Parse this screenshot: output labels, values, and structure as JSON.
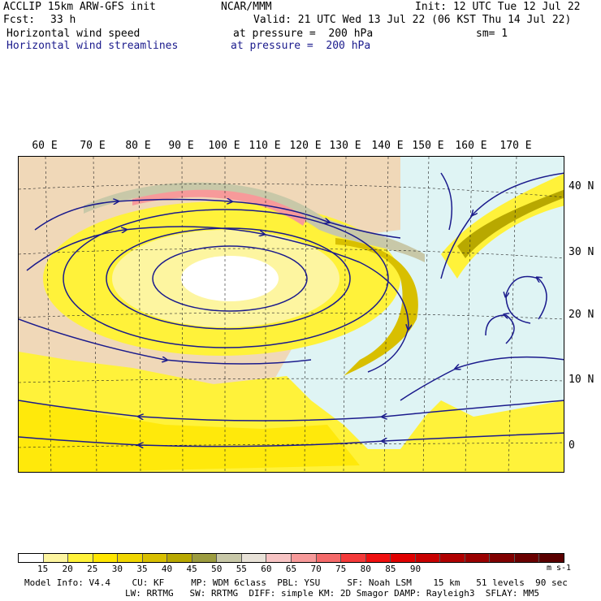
{
  "header": {
    "model_title": "ACCLIP 15km ARW-GFS init",
    "org": "NCAR/MMM",
    "init": "Init: 12 UTC Tue 12 Jul 22",
    "fcst_label": "Fcst:",
    "fcst_value": "33 h",
    "valid": "Valid: 21 UTC Wed 13 Jul 22 (06 KST Thu 14 Jul 22)",
    "field1_name": "Horizontal wind speed",
    "field1_level": "at pressure =  200 hPa",
    "smoothing": "sm= 1",
    "field2_name": "Horizontal wind streamlines",
    "field2_level": "at pressure =  200 hPa"
  },
  "map": {
    "lon_labels": [
      "60 E",
      "70 E",
      "80 E",
      "90 E",
      "100 E",
      "110 E",
      "120 E",
      "130 E",
      "140 E",
      "150 E",
      "160 E",
      "170 E"
    ],
    "lat_labels": [
      "40 N",
      "30 N",
      "20 N",
      "10 N",
      "0"
    ]
  },
  "colorbar": {
    "colors": [
      "#ffffff",
      "#fdf5a0",
      "#fff23a",
      "#ffe600",
      "#f0d600",
      "#d8bf00",
      "#b8a800",
      "#9c9c40",
      "#c8c8a8",
      "#e8e2d8",
      "#f7c4c4",
      "#f79a9a",
      "#f46a6a",
      "#f43a3a",
      "#f01010",
      "#e00000",
      "#c80000",
      "#b00000",
      "#9a0000",
      "#800000",
      "#6a0000",
      "#5a0000"
    ],
    "tick_labels": [
      "15",
      "20",
      "25",
      "30",
      "35",
      "40",
      "45",
      "50",
      "55",
      "60",
      "65",
      "70",
      "75",
      "80",
      "85",
      "90"
    ],
    "units": "m s-1"
  },
  "footer": {
    "line1": "Model Info: V4.4    CU: KF     MP: WDM 6class  PBL: YSU     SF: Noah LSM    15 km   51 levels  90 sec",
    "line2": "LW: RRTMG   SW: RRTMG  DIFF: simple KM: 2D Smagor DAMP: Rayleigh3  SFLAY: MM5"
  },
  "colors": {
    "streamline": "#1a1a8c",
    "ocean_calm": "#dff4f4",
    "land_calm": "#f0d8b8"
  }
}
